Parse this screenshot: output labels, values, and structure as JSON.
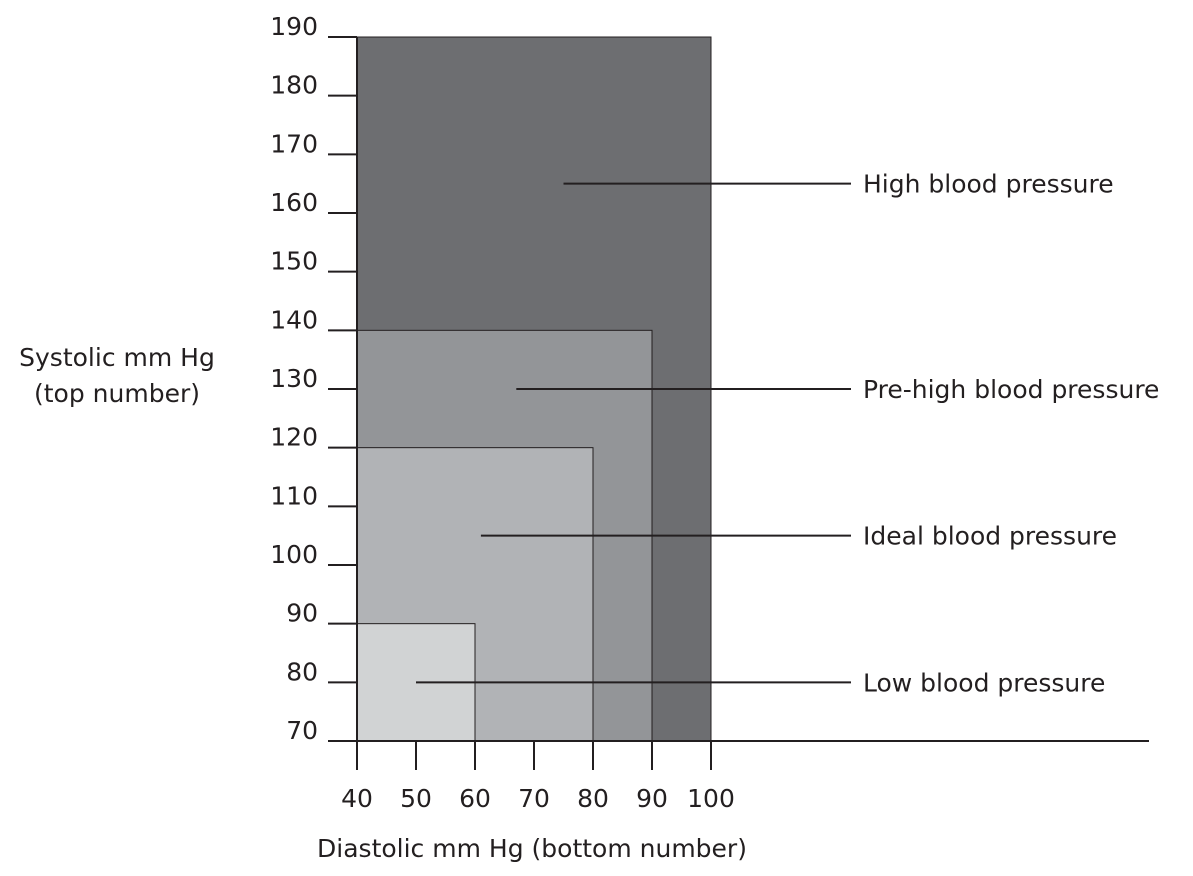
{
  "chart_data": {
    "type": "area",
    "title": "",
    "xlabel": "Diastolic mm Hg (bottom number)",
    "ylabel_lines": [
      "Systolic mm Hg",
      "(top number)"
    ],
    "xlim": [
      40,
      100
    ],
    "ylim": [
      70,
      190
    ],
    "x_ticks": [
      40,
      50,
      60,
      70,
      80,
      90,
      100
    ],
    "y_ticks": [
      70,
      80,
      90,
      100,
      110,
      120,
      130,
      140,
      150,
      160,
      170,
      180,
      190
    ],
    "grid": false,
    "regions": [
      {
        "name": "High blood pressure",
        "x_max": 100,
        "y_max": 190,
        "color": "#6d6e71",
        "label_anchor": [
          75,
          165
        ]
      },
      {
        "name": "Pre-high blood pressure",
        "x_max": 90,
        "y_max": 140,
        "color": "#939598",
        "label_anchor": [
          67,
          130
        ]
      },
      {
        "name": "Ideal blood pressure",
        "x_max": 80,
        "y_max": 120,
        "color": "#b1b3b6",
        "label_anchor": [
          61,
          105
        ]
      },
      {
        "name": "Low blood pressure",
        "x_max": 60,
        "y_max": 90,
        "color": "#d1d3d4",
        "label_anchor": [
          50,
          80
        ]
      }
    ]
  }
}
